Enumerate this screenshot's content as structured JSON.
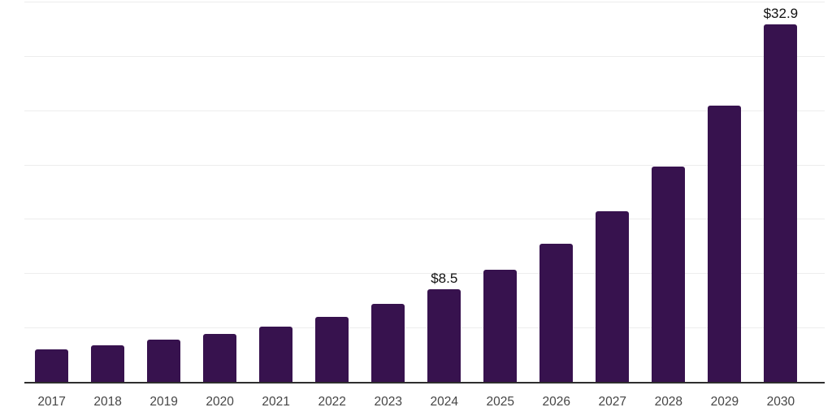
{
  "chart_data": {
    "type": "bar",
    "categories": [
      "2017",
      "2018",
      "2019",
      "2020",
      "2021",
      "2022",
      "2023",
      "2024",
      "2025",
      "2026",
      "2027",
      "2028",
      "2029",
      "2030"
    ],
    "values": [
      3.0,
      3.4,
      3.9,
      4.4,
      5.1,
      6.0,
      7.2,
      8.5,
      10.3,
      12.7,
      15.7,
      19.8,
      25.4,
      32.9
    ],
    "data_labels": {
      "2024": "$8.5",
      "2030": "$32.9"
    },
    "title": "",
    "xlabel": "",
    "ylabel": "",
    "ylim": [
      0,
      35
    ],
    "gridline_interval": 5,
    "grid": "horizontal-only",
    "y_tick_labels_visible": false,
    "legend": "none",
    "colors": {
      "bar": "#37124E",
      "axis_line": "#2E2E2E",
      "gridline": "#EDEDED",
      "tick_label": "#454545",
      "data_label": "#111111",
      "background": "#FFFFFF"
    }
  }
}
